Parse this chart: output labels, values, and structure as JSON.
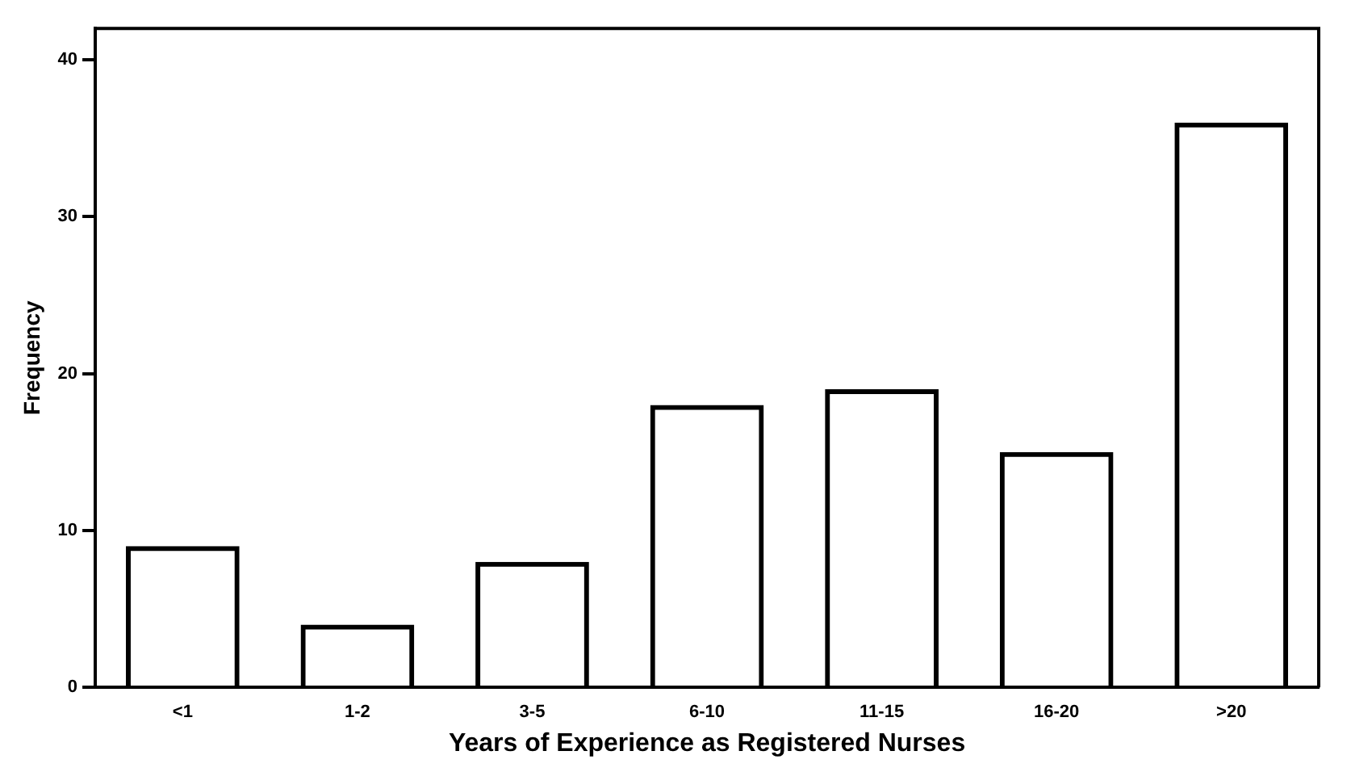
{
  "chart_data": {
    "type": "bar",
    "xlabel": "Years of Experience as Registered Nurses",
    "ylabel": "Frequency",
    "categories": [
      "<1",
      "1-2",
      "3-5",
      "6-10",
      "11-15",
      "16-20",
      ">20"
    ],
    "values": [
      9,
      4,
      8,
      18,
      19,
      15,
      36
    ],
    "color": "#000000",
    "ylim": [
      0,
      42
    ],
    "yticks": [
      0,
      10,
      20,
      30,
      40
    ],
    "grid": false,
    "legend": false
  }
}
